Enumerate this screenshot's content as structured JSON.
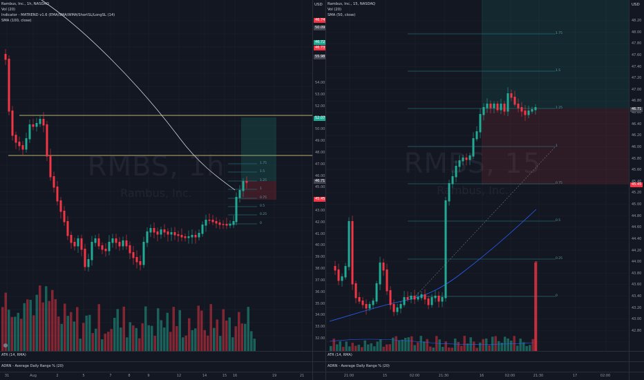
{
  "left_chart": {
    "symbol_line": "Rambus, Inc., 1h, NASDAQ",
    "indicators": [
      "Vol (20)",
      "Indicator - MATREND v1.6 (EMA/SMA/WMA/ShortSL/LongSL (14)",
      "SMA (100, close)"
    ],
    "watermark_symbol": "RMBS, 1h",
    "watermark_name": "Rambus, Inc.",
    "currency": "USD",
    "price_ticks": [
      "54.00",
      "53.00",
      "52.00",
      "51.00",
      "50.00",
      "49.00",
      "48.00",
      "47.00",
      "46.00",
      "45.00",
      "44.00",
      "43.00",
      "42.00",
      "41.00",
      "40.00",
      "39.00",
      "38.00",
      "37.00",
      "36.00",
      "35.00",
      "34.00",
      "33.00",
      "32.00"
    ],
    "price_tags": [
      {
        "text": "46.74",
        "color": "#f23645"
      },
      {
        "text": "50.09",
        "color": "#434651"
      },
      {
        "text": "46.72",
        "color": "#22ab94"
      },
      {
        "text": "46.73",
        "color": "#f23645"
      },
      {
        "text": "55.98",
        "color": "#434651"
      },
      {
        "text": "52.07",
        "color": "#22ab94"
      },
      {
        "text": "46.71",
        "color": "#434651"
      },
      {
        "text": "45.45",
        "color": "#f23645"
      }
    ],
    "fib_labels": [
      "1.75",
      "1.5",
      "1.25",
      "1",
      "0.75",
      "0.5",
      "0.25",
      "0"
    ],
    "sub_pane_1": "ATR (14, RMA)",
    "sub_pane_2": "ADRN - Average Daily Range % (20)",
    "x_ticks": [
      "31",
      "Aug",
      "2",
      "5",
      "7",
      "8",
      "9",
      "12",
      "14",
      "15",
      "16",
      "19",
      "21"
    ]
  },
  "right_chart": {
    "symbol_line": "Rambus, Inc., 15, NASDAQ",
    "indicators": [
      "Vol (20)",
      "SMA (50, close)"
    ],
    "watermark_symbol": "RMBS, 15",
    "watermark_name": "Rambus, Inc.",
    "currency": "USD",
    "price_ticks": [
      "48.20",
      "48.00",
      "47.80",
      "47.60",
      "47.40",
      "47.20",
      "47.00",
      "46.80",
      "46.60",
      "46.40",
      "46.20",
      "46.00",
      "45.80",
      "45.60",
      "45.40",
      "45.20",
      "45.00",
      "44.80",
      "44.60",
      "44.40",
      "44.20",
      "44.00",
      "43.80",
      "43.60",
      "43.40",
      "43.20",
      "43.00",
      "42.80"
    ],
    "price_tags": [
      {
        "text": "46.71",
        "color": "#434651"
      },
      {
        "text": "45.45",
        "color": "#f23645"
      }
    ],
    "fib_labels": [
      "1.75",
      "1.5",
      "1.25",
      "1",
      "0.75",
      "0.5",
      "0.25",
      "0"
    ],
    "sub_pane_1": "ATR (14, RMA)",
    "sub_pane_2": "ADRN - Average Daily Range % (20)",
    "x_ticks": [
      "21:00",
      "15",
      "02:00",
      "21:30",
      "16",
      "02:00",
      "21:30",
      "17",
      "02:00"
    ]
  },
  "colors": {
    "up": "#22ab94",
    "down": "#f23645",
    "bg": "#131722",
    "grid": "#1e222d",
    "sma": "#d1d4dc",
    "sma50": "#2962ff",
    "yellow": "#f7e78c",
    "fib": "#2a8a96"
  }
}
